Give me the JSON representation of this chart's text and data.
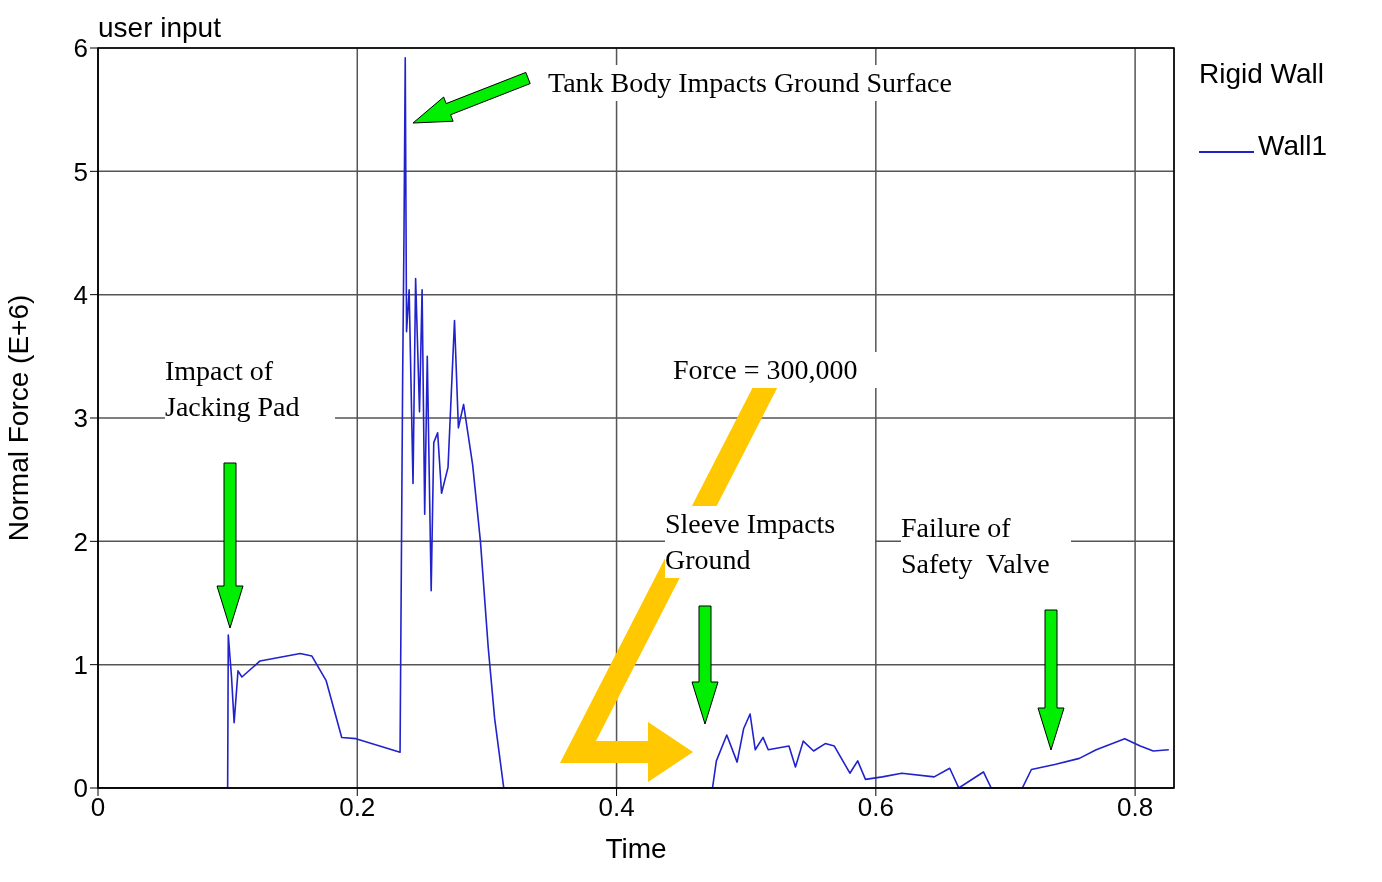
{
  "chart_data": {
    "type": "line",
    "title": "user input",
    "xlabel": "Time",
    "ylabel": "Normal Force (E+6)",
    "legend_title": "Rigid Wall",
    "legend": "top right",
    "grid": true,
    "marker": "none",
    "line_style": "solid",
    "xlim": [
      0,
      0.83
    ],
    "ylim": [
      0,
      6
    ],
    "xticks": [
      0,
      0.2,
      0.4,
      0.6,
      0.8
    ],
    "yticks": [
      0,
      1,
      2,
      3,
      4,
      5,
      6
    ],
    "series": [
      {
        "name": "Wall1",
        "color": "#2222cc",
        "x": [
          0,
          0.1,
          0.1005,
          0.103,
          0.105,
          0.108,
          0.111,
          0.125,
          0.156,
          0.165,
          0.176,
          0.188,
          0.199,
          0.233,
          0.235,
          0.236,
          0.237,
          0.238,
          0.24,
          0.243,
          0.245,
          0.248,
          0.25,
          0.252,
          0.254,
          0.257,
          0.259,
          0.262,
          0.265,
          0.27,
          0.275,
          0.278,
          0.282,
          0.289,
          0.295,
          0.301,
          0.306,
          0.313,
          0.47,
          0.474,
          0.477,
          0.485,
          0.493,
          0.498,
          0.503,
          0.507,
          0.513,
          0.517,
          0.533,
          0.538,
          0.544,
          0.552,
          0.561,
          0.568,
          0.58,
          0.586,
          0.592,
          0.605,
          0.62,
          0.645,
          0.657,
          0.664,
          0.683,
          0.689,
          0.713,
          0.72,
          0.738,
          0.757,
          0.77,
          0.792,
          0.804,
          0.814,
          0.826
        ],
        "values": [
          0,
          0,
          1.24,
          0.9,
          0.53,
          0.95,
          0.9,
          1.03,
          1.09,
          1.07,
          0.87,
          0.41,
          0.4,
          0.29,
          3.32,
          4.45,
          5.92,
          3.7,
          4.04,
          2.47,
          4.13,
          3.05,
          4.04,
          2.22,
          3.5,
          1.6,
          2.8,
          2.88,
          2.39,
          2.6,
          3.79,
          2.92,
          3.11,
          2.62,
          2.0,
          1.14,
          0.56,
          0,
          0,
          0,
          0.22,
          0.43,
          0.21,
          0.48,
          0.6,
          0.31,
          0.41,
          0.31,
          0.34,
          0.17,
          0.38,
          0.3,
          0.36,
          0.34,
          0.12,
          0.22,
          0.07,
          0.09,
          0.12,
          0.09,
          0.16,
          0,
          0.13,
          0,
          0,
          0.15,
          0.19,
          0.24,
          0.31,
          0.4,
          0.34,
          0.3,
          0.31
        ]
      }
    ],
    "annotations": [
      "Tank Body Impacts Ground Surface",
      "Impact of Jacking Pad",
      "Force = 300,000",
      "Sleeve Impacts Ground",
      "Failure of Safety  Valve"
    ]
  }
}
